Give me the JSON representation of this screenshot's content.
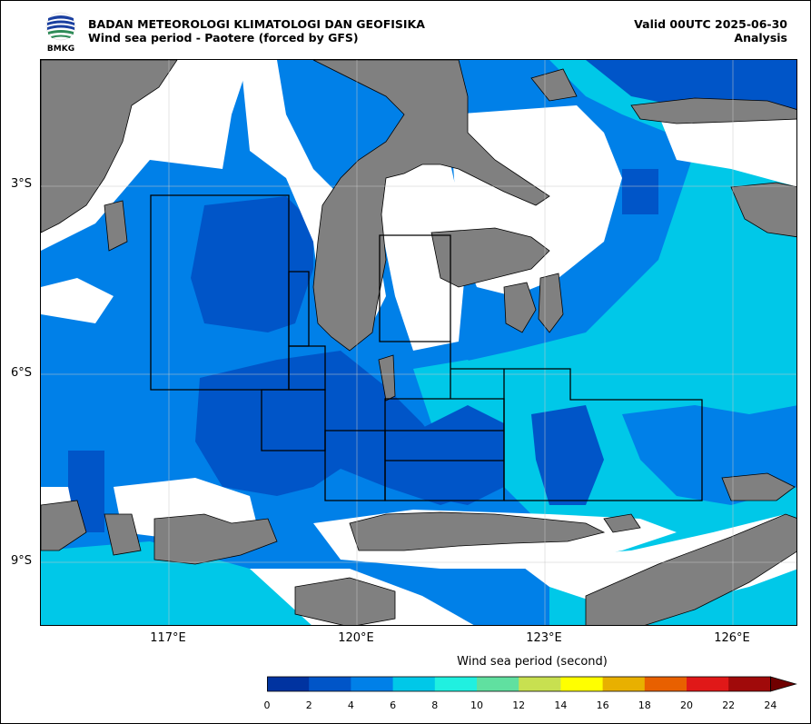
{
  "header": {
    "agency": "BADAN METEOROLOGI KLIMATOLOGI DAN GEOFISIKA",
    "product": "Wind sea period - Paotere (forced by GFS)",
    "valid": "Valid 00UTC 2025-06-30",
    "kind": "Analysis",
    "logo_text": "BMKG"
  },
  "axes": {
    "lat_labels": [
      "3°S",
      "6°S",
      "9°S"
    ],
    "lon_labels": [
      "117°E",
      "120°E",
      "123°E",
      "126°E"
    ]
  },
  "colorbar": {
    "title": "Wind sea period (second)",
    "ticks": [
      "0",
      "2",
      "4",
      "6",
      "8",
      "10",
      "12",
      "14",
      "16",
      "18",
      "20",
      "22",
      "24"
    ],
    "colors": [
      "#0033a0",
      "#0055c8",
      "#0080e8",
      "#00c8e8",
      "#20f0e0",
      "#60e0a0",
      "#c8e050",
      "#ffff00",
      "#e8b000",
      "#e86000",
      "#e01818",
      "#a00a0a",
      "#700000"
    ]
  },
  "colors": {
    "land": "#808080",
    "coast": "#000000",
    "no_data": "#ffffff"
  }
}
